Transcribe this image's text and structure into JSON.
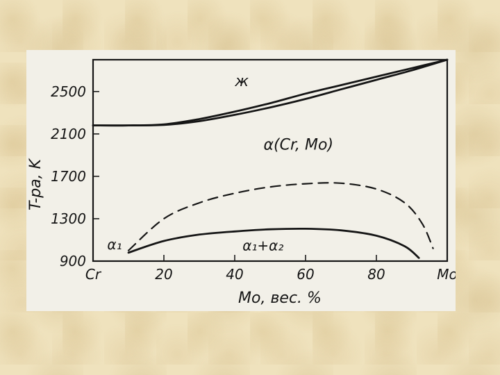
{
  "chart_data": {
    "type": "line",
    "xlabel": "Mo, вес. %",
    "ylabel": "T-ра, K",
    "xlim": [
      0,
      100
    ],
    "ylim": [
      900,
      2800
    ],
    "x_ticks": [
      {
        "value": 0,
        "label": "Cr"
      },
      {
        "value": 20,
        "label": "20"
      },
      {
        "value": 40,
        "label": "40"
      },
      {
        "value": 60,
        "label": "60"
      },
      {
        "value": 80,
        "label": "80"
      },
      {
        "value": 100,
        "label": "Mo"
      }
    ],
    "y_ticks": [
      {
        "value": 900,
        "label": "900"
      },
      {
        "value": 1300,
        "label": "1300"
      },
      {
        "value": 1700,
        "label": "1700"
      },
      {
        "value": 2100,
        "label": "2100"
      },
      {
        "value": 2500,
        "label": "2500"
      }
    ],
    "series": [
      {
        "style": "solid",
        "x": [
          0,
          10,
          20,
          30,
          40,
          50,
          60,
          70,
          80,
          90,
          100
        ],
        "y": [
          2180,
          2180,
          2190,
          2240,
          2310,
          2390,
          2480,
          2560,
          2640,
          2720,
          2800
        ]
      },
      {
        "style": "solid",
        "x": [
          0,
          10,
          20,
          30,
          40,
          50,
          60,
          70,
          80,
          90,
          100
        ],
        "y": [
          2180,
          2180,
          2185,
          2220,
          2280,
          2350,
          2430,
          2520,
          2610,
          2700,
          2800
        ]
      },
      {
        "style": "dashed",
        "x": [
          10,
          20,
          30,
          40,
          50,
          60,
          70,
          80,
          88,
          93,
          96
        ],
        "y": [
          1000,
          1300,
          1450,
          1540,
          1600,
          1630,
          1635,
          1580,
          1450,
          1250,
          1020
        ]
      },
      {
        "style": "solid",
        "x": [
          10,
          20,
          30,
          40,
          50,
          60,
          70,
          80,
          88,
          92
        ],
        "y": [
          980,
          1090,
          1150,
          1180,
          1200,
          1205,
          1190,
          1140,
          1040,
          930
        ]
      }
    ],
    "annotations": [
      {
        "text": "ж",
        "x": 42,
        "y": 2550
      },
      {
        "text": "α(Cr, Mo)",
        "x": 58,
        "y": 1950
      },
      {
        "text": "α₁+α₂",
        "x": 48,
        "y": 1000
      },
      {
        "text": "α₁",
        "x": 4,
        "y": 1010
      }
    ]
  }
}
